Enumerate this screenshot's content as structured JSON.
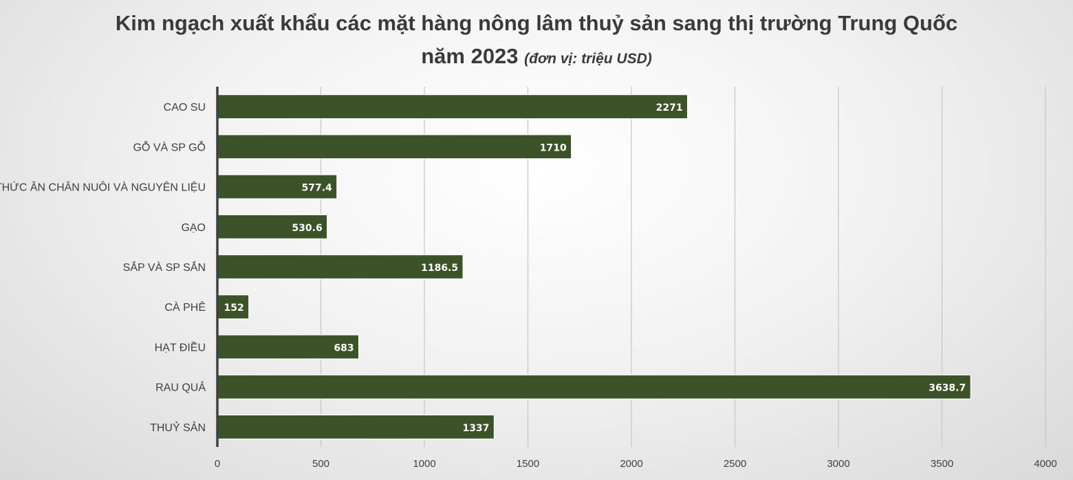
{
  "chart_data": {
    "type": "bar",
    "orientation": "horizontal",
    "title": "Kim ngạch xuất khẩu các mặt hàng nông lâm thuỷ sản sang thị trường Trung Quốc",
    "title_line2": "năm 2023",
    "unit_note": "(đơn vị: triệu USD)",
    "categories": [
      "CAO SU",
      "GỖ VÀ SP GỖ",
      "THỨC ĂN CHĂN NUÔI VÀ NGUYÊN LIỆU",
      "GẠO",
      "SẮP VÀ SP SẮN",
      "CÀ PHÊ",
      "HẠT ĐIỀU",
      "RAU QUẢ",
      "THUỶ SẢN"
    ],
    "values": [
      2271,
      1710,
      577.4,
      530.6,
      1186.5,
      152,
      683,
      3638.7,
      1337
    ],
    "data_labels": [
      "2271",
      "1710",
      "577.4",
      "530.6",
      "1186.5",
      "152",
      "683",
      "3638.7",
      "1337"
    ],
    "xlim": [
      0,
      4000
    ],
    "x_ticks": [
      0,
      500,
      1000,
      1500,
      2000,
      2500,
      3000,
      3500,
      4000
    ],
    "x_tick_labels": [
      "0",
      "500",
      "1000",
      "1500",
      "2000",
      "2500",
      "3000",
      "3500",
      "4000"
    ],
    "grid": "vertical",
    "legend": "none",
    "colors": {
      "bar": "#3c5229",
      "bar_stroke": "#ffffff",
      "grid": "#c8c8c8",
      "axis": "#404040"
    }
  }
}
